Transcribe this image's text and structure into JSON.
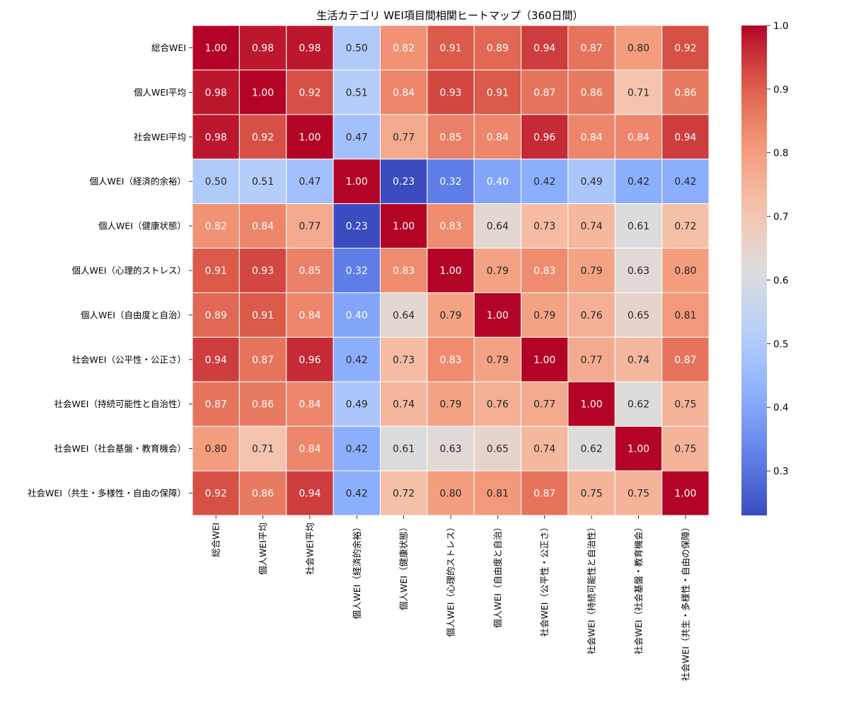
{
  "chart_data": {
    "type": "heatmap",
    "title": "生活カテゴリ WEI項目間相関ヒートマップ（360日間）",
    "row_labels": [
      "総合WEI",
      "個人WEI平均",
      "社会WEI平均",
      "個人WEI（経済的余裕）",
      "個人WEI（健康状態）",
      "個人WEI（心理的ストレス）",
      "個人WEI（自由度と自治）",
      "社会WEI（公平性・公正さ）",
      "社会WEI（持続可能性と自治性）",
      "社会WEI（社会基盤・教育機会）",
      "社会WEI（共生・多様性・自由の保障）"
    ],
    "col_labels": [
      "総合WEI",
      "個人WEI平均",
      "社会WEI平均",
      "個人WEI（経済的余裕）",
      "個人WEI（健康状態）",
      "個人WEI（心理的ストレス）",
      "個人WEI（自由度と自治）",
      "社会WEI（公平性・公正さ）",
      "社会WEI（持続可能性と自治性）",
      "社会WEI（社会基盤・教育機会）",
      "社会WEI（共生・多様性・自由の保障）"
    ],
    "values": [
      [
        1.0,
        0.98,
        0.98,
        0.5,
        0.82,
        0.91,
        0.89,
        0.94,
        0.87,
        0.8,
        0.92
      ],
      [
        0.98,
        1.0,
        0.92,
        0.51,
        0.84,
        0.93,
        0.91,
        0.87,
        0.86,
        0.71,
        0.86
      ],
      [
        0.98,
        0.92,
        1.0,
        0.47,
        0.77,
        0.85,
        0.84,
        0.96,
        0.84,
        0.84,
        0.94
      ],
      [
        0.5,
        0.51,
        0.47,
        1.0,
        0.23,
        0.32,
        0.4,
        0.42,
        0.49,
        0.42,
        0.42
      ],
      [
        0.82,
        0.84,
        0.77,
        0.23,
        1.0,
        0.83,
        0.64,
        0.73,
        0.74,
        0.61,
        0.72
      ],
      [
        0.91,
        0.93,
        0.85,
        0.32,
        0.83,
        1.0,
        0.79,
        0.83,
        0.79,
        0.63,
        0.8
      ],
      [
        0.89,
        0.91,
        0.84,
        0.4,
        0.64,
        0.79,
        1.0,
        0.79,
        0.76,
        0.65,
        0.81
      ],
      [
        0.94,
        0.87,
        0.96,
        0.42,
        0.73,
        0.83,
        0.79,
        1.0,
        0.77,
        0.74,
        0.87
      ],
      [
        0.87,
        0.86,
        0.84,
        0.49,
        0.74,
        0.79,
        0.76,
        0.77,
        1.0,
        0.62,
        0.75
      ],
      [
        0.8,
        0.71,
        0.84,
        0.42,
        0.61,
        0.63,
        0.65,
        0.74,
        0.62,
        1.0,
        0.75
      ],
      [
        0.92,
        0.86,
        0.94,
        0.42,
        0.72,
        0.8,
        0.81,
        0.87,
        0.75,
        0.75,
        1.0
      ]
    ],
    "colormap": "coolwarm",
    "vmin": 0.23,
    "vmax": 1.0,
    "colorbar_ticks": [
      0.3,
      0.4,
      0.5,
      0.6,
      0.7,
      0.8,
      0.9,
      1.0
    ],
    "colorbar_tick_labels": [
      "0.3",
      "0.4",
      "0.5",
      "0.6",
      "0.7",
      "0.8",
      "0.9",
      "1.0"
    ],
    "annotation_format": "0.00"
  }
}
